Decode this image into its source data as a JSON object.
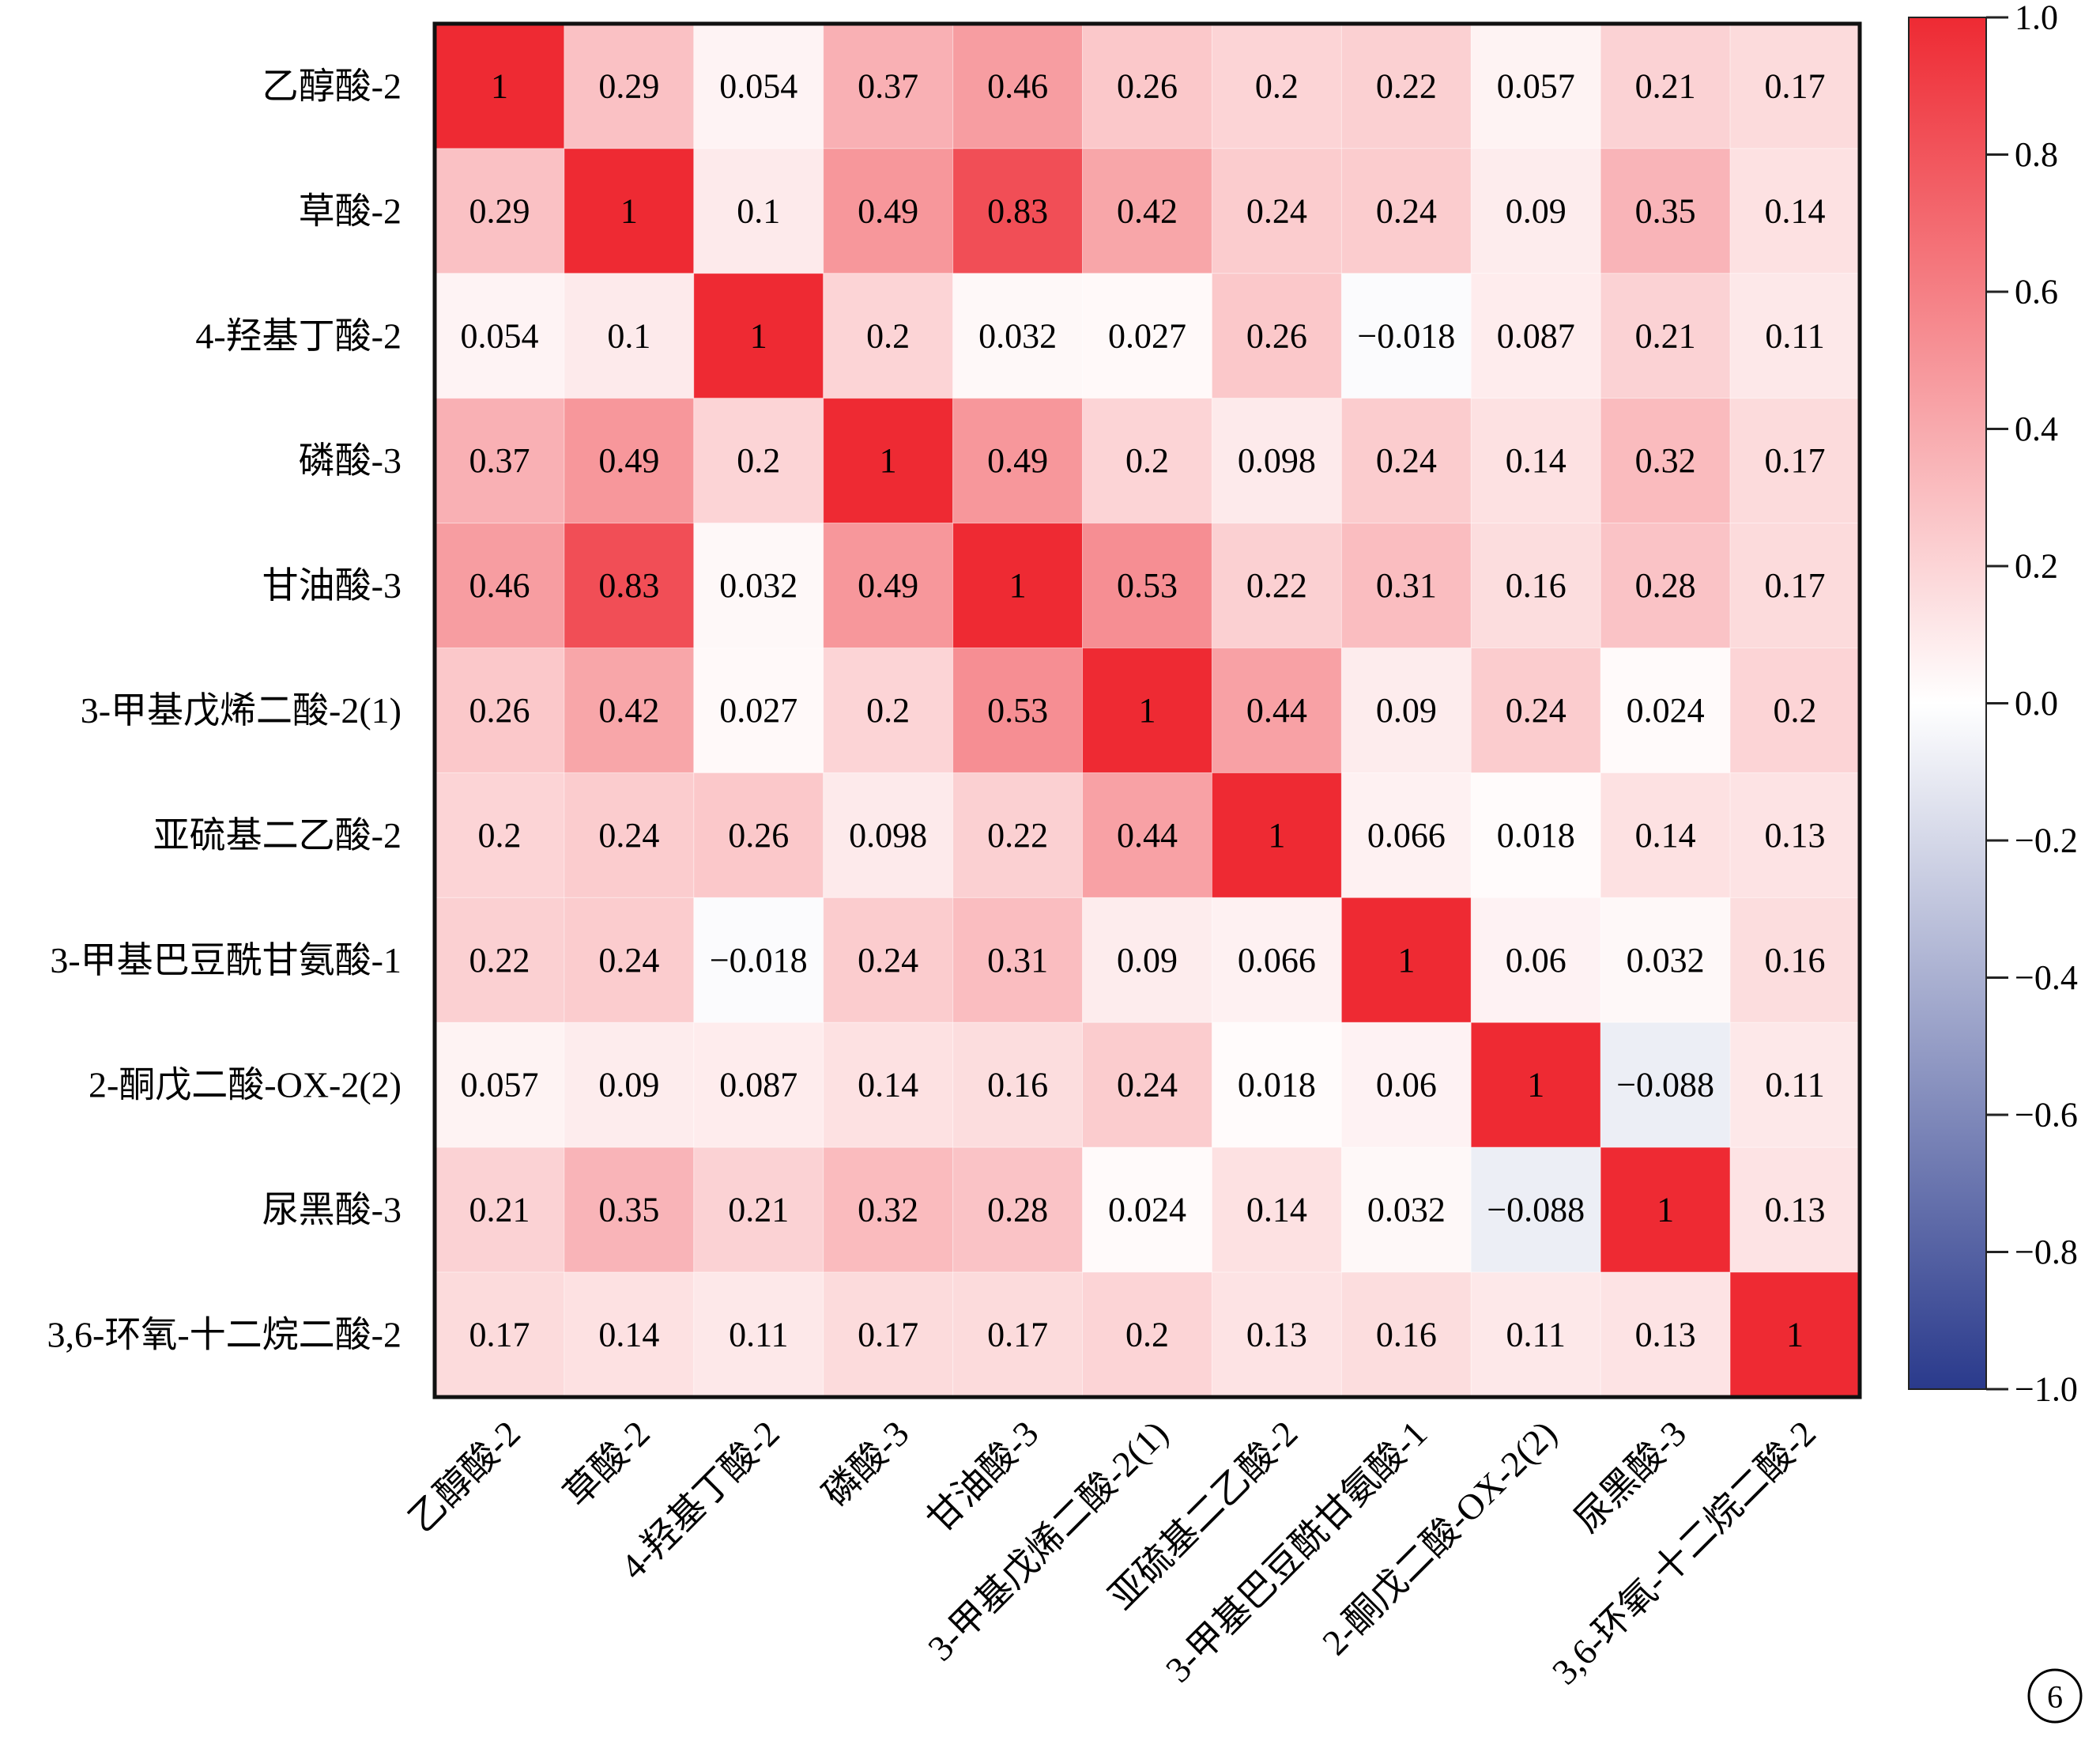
{
  "chart_data": {
    "type": "heatmap",
    "title": "",
    "rows": [
      "乙醇酸-2",
      "草酸-2",
      "4-羟基丁酸-2",
      "磷酸-3",
      "甘油酸-3",
      "3-甲基戊烯二酸-2(1)",
      "亚硫基二乙酸-2",
      "3-甲基巴豆酰甘氨酸-1",
      "2-酮戊二酸-OX-2(2)",
      "尿黑酸-3",
      "3,6-环氧-十二烷二酸-2"
    ],
    "columns": [
      "乙醇酸-2",
      "草酸-2",
      "4-羟基丁酸-2",
      "磷酸-3",
      "甘油酸-3",
      "3-甲基戊烯二酸-2(1)",
      "亚硫基二乙酸-2",
      "3-甲基巴豆酰甘氨酸-1",
      "2-酮戊二酸-OX-2(2)",
      "尿黑酸-3",
      "3,6-环氧-十二烷二酸-2"
    ],
    "values": [
      [
        1,
        0.29,
        0.054,
        0.37,
        0.46,
        0.26,
        0.2,
        0.22,
        0.057,
        0.21,
        0.17
      ],
      [
        0.29,
        1,
        0.1,
        0.49,
        0.83,
        0.42,
        0.24,
        0.24,
        0.09,
        0.35,
        0.14
      ],
      [
        0.054,
        0.1,
        1,
        0.2,
        0.032,
        0.027,
        0.26,
        -0.018,
        0.087,
        0.21,
        0.11
      ],
      [
        0.37,
        0.49,
        0.2,
        1,
        0.49,
        0.2,
        0.098,
        0.24,
        0.14,
        0.32,
        0.17
      ],
      [
        0.46,
        0.83,
        0.032,
        0.49,
        1,
        0.53,
        0.22,
        0.31,
        0.16,
        0.28,
        0.17
      ],
      [
        0.26,
        0.42,
        0.027,
        0.2,
        0.53,
        1,
        0.44,
        0.09,
        0.24,
        0.024,
        0.2
      ],
      [
        0.2,
        0.24,
        0.26,
        0.098,
        0.22,
        0.44,
        1,
        0.066,
        0.018,
        0.14,
        0.13
      ],
      [
        0.22,
        0.24,
        -0.018,
        0.24,
        0.31,
        0.09,
        0.066,
        1,
        0.06,
        0.032,
        0.16
      ],
      [
        0.057,
        0.09,
        0.087,
        0.14,
        0.16,
        0.24,
        0.018,
        0.06,
        1,
        -0.088,
        0.11
      ],
      [
        0.21,
        0.35,
        0.21,
        0.32,
        0.28,
        0.024,
        0.14,
        0.032,
        -0.088,
        1,
        0.13
      ],
      [
        0.17,
        0.14,
        0.11,
        0.17,
        0.17,
        0.2,
        0.13,
        0.16,
        0.11,
        0.13,
        1
      ]
    ],
    "colorbar": {
      "range": [
        -1.0,
        1.0
      ],
      "ticks": [
        "1.0",
        "0.8",
        "0.6",
        "0.4",
        "0.2",
        "0.0",
        "−0.2",
        "−0.4",
        "−0.6",
        "−0.8",
        "−1.0"
      ],
      "colors": {
        "high": "#ee2a33",
        "mid": "#ffffff",
        "low": "#2a3a8c"
      }
    },
    "panel_label": "6"
  }
}
